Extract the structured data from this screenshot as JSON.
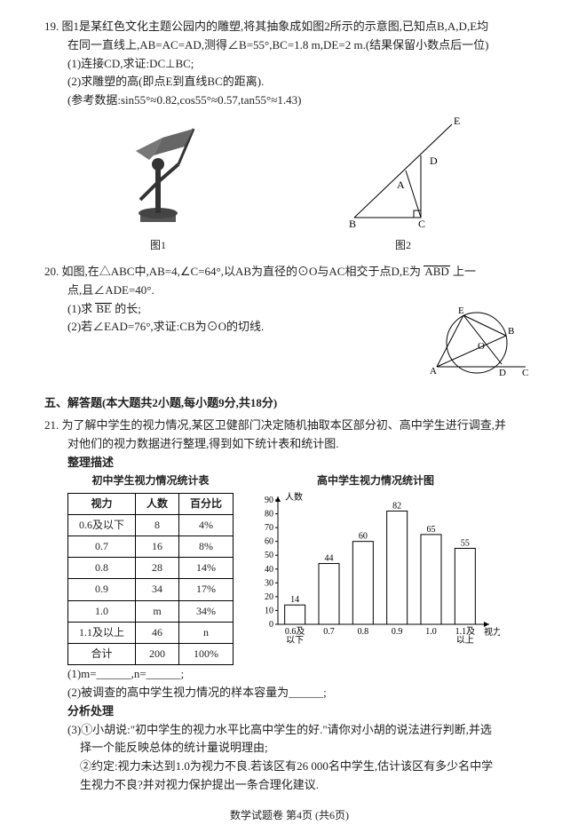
{
  "q19": {
    "num": "19.",
    "stem1": "图1是某红色文化主题公园内的雕塑,将其抽象成如图2所示的示意图,已知点B,A,D,E均",
    "stem2": "在同一直线上,AB=AC=AD,测得∠B=55°,BC=1.8 m,DE=2 m.(结果保留小数点后一位)",
    "p1": "(1)连接CD,求证:DC⊥BC;",
    "p2": "(2)求雕塑的高(即点E到直线BC的距离).",
    "p3": "(参考数据:sin55°≈0.82,cos55°≈0.57,tan55°≈1.43)",
    "cap1": "图1",
    "cap2": "图2",
    "labels": {
      "E": "E",
      "D": "D",
      "A": "A",
      "B": "B",
      "C": "C"
    }
  },
  "q20": {
    "num": "20.",
    "stem1": "如图,在△ABC中,AB=4,∠C=64°,以AB为直径的⊙O与AC相交于点D,E为",
    "arc": "ABD",
    "stem1b": "上一",
    "stem2": "点,且∠ADE=40°.",
    "p1a": "(1)求",
    "p1arc": "BE",
    "p1b": "的长;",
    "p2": "(2)若∠EAD=76°,求证:CB为⊙O的切线.",
    "labels": {
      "E": "E",
      "B": "B",
      "O": "O",
      "A": "A",
      "D": "D",
      "C": "C"
    }
  },
  "section5": "五、解答题(本大题共2小题,每小题9分,共18分)",
  "q21": {
    "num": "21.",
    "stem1": "为了解中学生的视力情况,某区卫健部门决定随机抽取本区部分初、高中学生进行调查,并",
    "stem2": "对他们的视力数据进行整理,得到如下统计表和统计图.",
    "zl": "整理描述",
    "table_title": "初中学生视力情况统计表",
    "chart_title": "高中学生视力情况统计图",
    "headers": [
      "视力",
      "人数",
      "百分比"
    ],
    "rows": [
      [
        "0.6及以下",
        "8",
        "4%"
      ],
      [
        "0.7",
        "16",
        "8%"
      ],
      [
        "0.8",
        "28",
        "14%"
      ],
      [
        "0.9",
        "34",
        "17%"
      ],
      [
        "1.0",
        "m",
        "34%"
      ],
      [
        "1.1及以上",
        "46",
        "n"
      ],
      [
        "合计",
        "200",
        "100%"
      ]
    ],
    "chart": {
      "ylabel": "人数",
      "xlabel": "视力",
      "ymax": 90,
      "yticks": [
        0,
        10,
        20,
        30,
        40,
        50,
        60,
        70,
        80,
        90
      ],
      "categories": [
        "0.6及\n以下",
        "0.7",
        "0.8",
        "0.9",
        "1.0",
        "1.1及\n以上"
      ],
      "values": [
        14,
        44,
        60,
        82,
        65,
        55
      ],
      "bar_color": "#ffffff",
      "border_color": "#000000",
      "axis_color": "#000000",
      "font_size": 10
    },
    "q1": "(1)m=______,n=______;",
    "q2": "(2)被调查的高中学生视力情况的样本容量为______;",
    "fx": "分析处理",
    "q3a": "(3)①小胡说:\"初中学生的视力水平比高中学生的好.\"请你对小胡的说法进行判断,并选",
    "q3b": "择一个能反映总体的统计量说明理由;",
    "q3c": "②约定:视力未达到1.0为视力不良.若该区有26 000名中学生,估计该区有多少名中学",
    "q3d": "生视力不良?并对视力保护提出一条合理化建议."
  },
  "footer": "数学试题卷 第4页 (共6页)"
}
